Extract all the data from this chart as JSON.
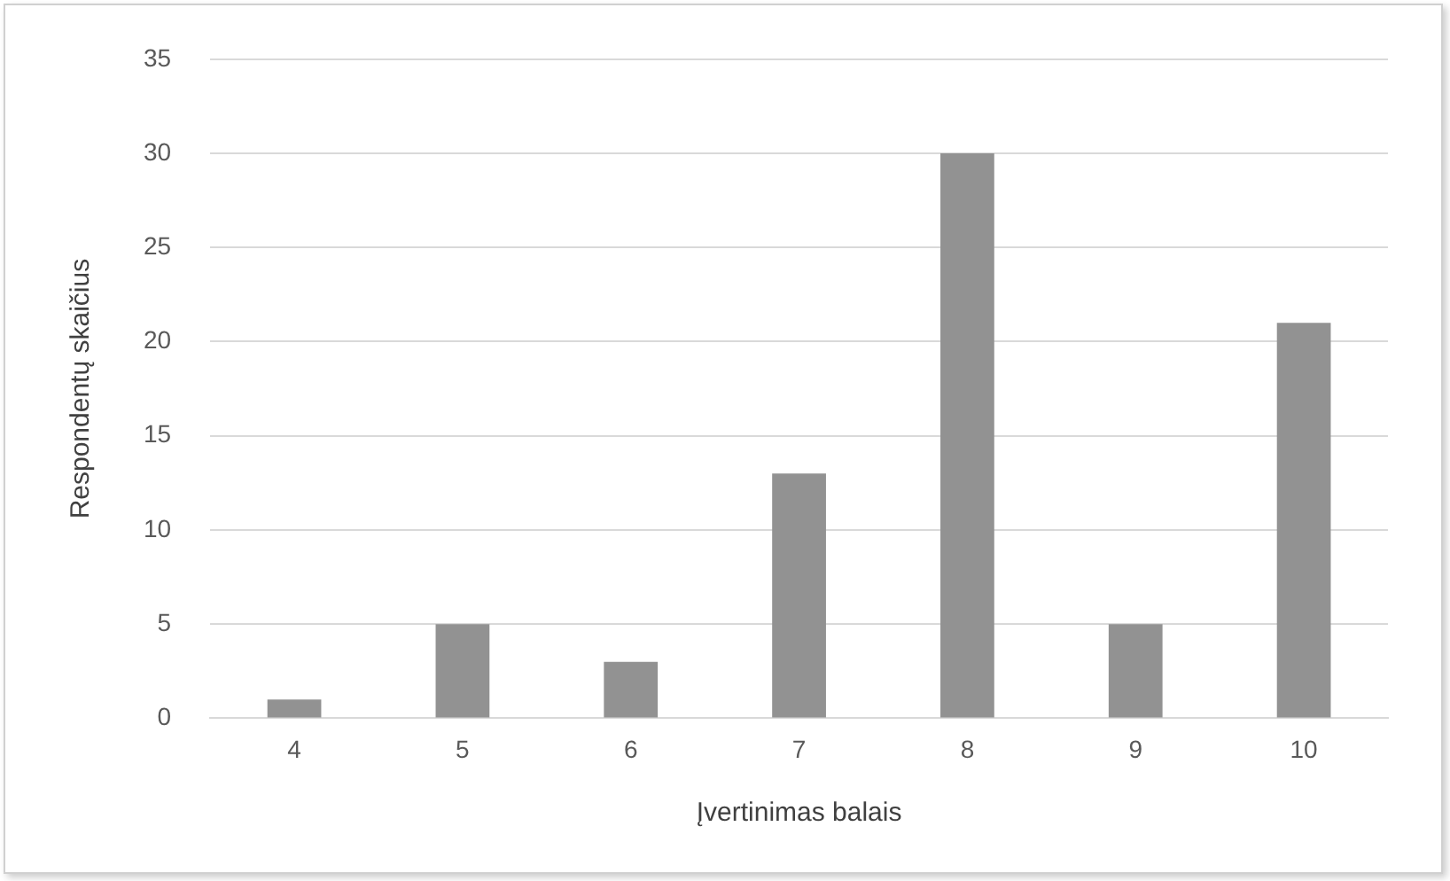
{
  "chart_data": {
    "type": "bar",
    "xlabel": "Įvertinimas balais",
    "ylabel": "Respondentų skaičius",
    "categories": [
      "4",
      "5",
      "6",
      "7",
      "8",
      "9",
      "10"
    ],
    "values": [
      1,
      5,
      3,
      13,
      30,
      5,
      21
    ],
    "color": "#929292",
    "ylim": [
      0,
      35
    ],
    "yticks": [
      0,
      5,
      10,
      15,
      20,
      25,
      30,
      35
    ],
    "grid": "y",
    "legend": false
  }
}
